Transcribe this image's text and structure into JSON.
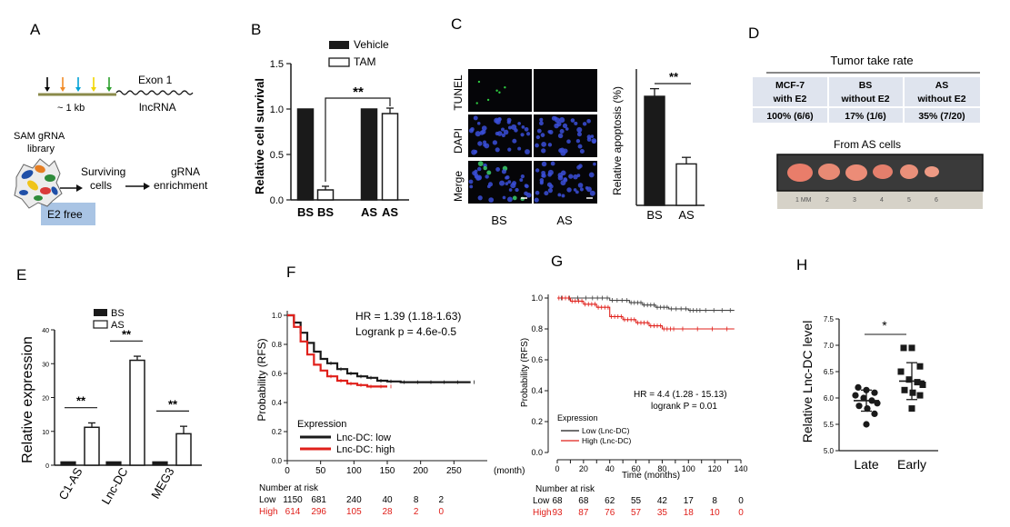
{
  "panels": {
    "A": {
      "letter": "A",
      "exon_label": "Exon 1",
      "scale_label": "~ 1 kb",
      "lnc_label": "lncRNA",
      "library_label_1": "SAM gRNA",
      "library_label_2": "library",
      "surviving_1": "Surviving",
      "surviving_2": "cells",
      "enrich_1": "gRNA",
      "enrich_2": "enrichment",
      "box_label": "E2 free",
      "arrow_colors": [
        "#000000",
        "#f28c28",
        "#00a2d6",
        "#f2d600",
        "#2ca02c"
      ]
    },
    "B": {
      "letter": "B",
      "sig": "**"
    },
    "C": {
      "letter": "C",
      "row_labels": [
        "TUNEL",
        "DAPI",
        "Merge"
      ],
      "col_labels": [
        "BS",
        "AS"
      ],
      "sig": "**"
    },
    "D": {
      "letter": "D",
      "table_title": "Tumor take rate",
      "headers": [
        [
          "MCF-7",
          "with E2"
        ],
        [
          "BS",
          "without E2"
        ],
        [
          "AS",
          "without E2"
        ]
      ],
      "values": [
        "100% (6/6)",
        "17% (1/6)",
        "35% (7/20)"
      ],
      "photo_title": "From AS cells",
      "ruler": [
        "1 MM",
        "2",
        "3",
        "4",
        "5",
        "6"
      ]
    },
    "E": {
      "letter": "E",
      "sig": [
        "**",
        "**",
        "**"
      ]
    },
    "F": {
      "letter": "F",
      "hr": "HR = 1.39 (1.18-1.63)",
      "logrank": "Logrank p = 4.6e-0.5",
      "legend_title": "Expression",
      "legend": [
        "Lnc-DC: low",
        "Lnc-DC: high"
      ],
      "risk_title": "Number at risk",
      "risk_low_label": "Low",
      "risk_low": [
        "1150",
        "681",
        "240",
        "40",
        "8",
        "2"
      ],
      "risk_high_label": "High",
      "risk_high": [
        "614",
        "296",
        "105",
        "28",
        "2",
        "0"
      ]
    },
    "G": {
      "letter": "G",
      "hr": "HR = 4.4 (1.28 - 15.13)",
      "logrank": "logrank P = 0.01",
      "legend_title": "Expression",
      "legend": [
        "Low  (Lnc-DC)",
        "High (Lnc-DC)"
      ],
      "risk_title": "Number at risk",
      "risk_low_label": "Low",
      "risk_low": [
        "68",
        "68",
        "62",
        "55",
        "42",
        "17",
        "8",
        "0"
      ],
      "risk_high_label": "High",
      "risk_high": [
        "93",
        "87",
        "76",
        "57",
        "35",
        "18",
        "10",
        "0"
      ]
    },
    "H": {
      "letter": "H",
      "sig": "*"
    }
  },
  "colors": {
    "black": "#1a1a1a",
    "red": "#e0201b",
    "table_fill": "#dfe4ee",
    "box_fill": "#a9c4e4"
  },
  "chart_data": [
    {
      "panel": "B",
      "type": "bar",
      "categories": [
        "BS",
        "BS",
        "AS",
        "AS"
      ],
      "series": [
        {
          "name": "Vehicle",
          "values": [
            1.0,
            null,
            1.0,
            null
          ]
        },
        {
          "name": "TAM",
          "values": [
            null,
            0.11,
            null,
            0.95
          ]
        }
      ],
      "errors": [
        0,
        0.04,
        0,
        0.06
      ],
      "ylabel": "Relative cell survival",
      "ylim": [
        0,
        1.5
      ],
      "yticks": [
        0,
        0.5,
        1.0,
        1.5
      ],
      "ytick_labels": [
        "0.0",
        "0.5",
        "1.0",
        "1.5"
      ],
      "legend": "top-right"
    },
    {
      "panel": "C",
      "type": "bar",
      "categories": [
        "BS",
        "AS"
      ],
      "values": [
        20,
        7.6
      ],
      "errors": [
        1.4,
        1.2
      ],
      "ylabel": "Relative apoptosis (%)",
      "ylim": [
        0,
        25
      ]
    },
    {
      "panel": "E",
      "type": "bar",
      "categories": [
        "C1-AS",
        "Lnc-DC",
        "MEG3"
      ],
      "series": [
        {
          "name": "BS",
          "values": [
            1.0,
            1.0,
            1.0
          ]
        },
        {
          "name": "AS",
          "values": [
            11.2,
            31.0,
            9.3
          ]
        }
      ],
      "errors": [
        [
          0,
          0,
          0
        ],
        [
          1.3,
          1.2,
          2.2
        ]
      ],
      "ylabel": "Relative expression",
      "ylim": [
        0,
        40
      ],
      "yticks": [
        0,
        10,
        20,
        30,
        40
      ],
      "ytick_labels": [
        "0",
        "10",
        "20",
        "30",
        "40"
      ],
      "legend": "top-center"
    },
    {
      "panel": "F",
      "type": "line",
      "xlabel": "(month)",
      "ylabel": "Probability (RFS)",
      "xlim": [
        0,
        300
      ],
      "ylim": [
        0,
        1.0
      ],
      "xticks": [
        0,
        50,
        100,
        150,
        200,
        250
      ],
      "yticks": [
        0,
        0.2,
        0.4,
        0.6,
        0.8,
        1.0
      ],
      "ytick_labels": [
        "0.0",
        "0.2",
        "0.4",
        "0.6",
        "0.8",
        "1.0"
      ],
      "series": [
        {
          "name": "Lnc-DC: low",
          "x": [
            0,
            10,
            20,
            30,
            40,
            50,
            60,
            75,
            90,
            105,
            120,
            135,
            150,
            170,
            190,
            210,
            230,
            250,
            275
          ],
          "y": [
            1.0,
            0.95,
            0.88,
            0.81,
            0.75,
            0.7,
            0.67,
            0.63,
            0.6,
            0.58,
            0.57,
            0.55,
            0.545,
            0.54,
            0.54,
            0.54,
            0.54,
            0.54,
            0.54
          ]
        },
        {
          "name": "Lnc-DC: high",
          "x": [
            0,
            10,
            20,
            30,
            40,
            50,
            60,
            75,
            90,
            105,
            120,
            135,
            150
          ],
          "y": [
            1.0,
            0.92,
            0.82,
            0.73,
            0.66,
            0.62,
            0.58,
            0.55,
            0.53,
            0.52,
            0.51,
            0.51,
            0.51
          ]
        }
      ]
    },
    {
      "panel": "G",
      "type": "line",
      "xlabel": "Time (months)",
      "ylabel": "Probability (RFS)",
      "xlim": [
        0,
        140
      ],
      "ylim": [
        0,
        1.0
      ],
      "xticks": [
        0,
        10,
        20,
        30,
        40,
        50,
        60,
        70,
        80,
        90,
        100,
        110,
        120,
        130,
        140
      ],
      "yticks": [
        0,
        0.2,
        0.4,
        0.6,
        0.8,
        1.0
      ],
      "ytick_labels": [
        "0.0",
        "0.2",
        "0.4",
        "0.6",
        "0.8",
        "1.0"
      ],
      "series": [
        {
          "name": "Low  (Lnc-DC)",
          "x": [
            0,
            25,
            40,
            55,
            65,
            75,
            85,
            100,
            110,
            135
          ],
          "y": [
            1.0,
            1.0,
            0.985,
            0.97,
            0.955,
            0.94,
            0.93,
            0.92,
            0.92,
            0.92
          ]
        },
        {
          "name": "High (Lnc-DC)",
          "x": [
            0,
            10,
            20,
            30,
            40,
            50,
            60,
            70,
            80,
            90,
            135
          ],
          "y": [
            1.0,
            0.98,
            0.96,
            0.94,
            0.88,
            0.86,
            0.84,
            0.82,
            0.8,
            0.8,
            0.8
          ]
        }
      ]
    },
    {
      "panel": "H",
      "type": "scatter",
      "categories": [
        "Late",
        "Early"
      ],
      "series": [
        {
          "name": "Late",
          "values": [
            6.2,
            6.15,
            6.1,
            6.05,
            6.0,
            5.95,
            5.9,
            5.85,
            5.8,
            5.7,
            5.5
          ]
        },
        {
          "name": "Early",
          "values": [
            6.95,
            6.95,
            6.6,
            6.5,
            6.35,
            6.3,
            6.25,
            6.15,
            6.1,
            6.05,
            5.8
          ]
        }
      ],
      "means": [
        5.95,
        6.32
      ],
      "sd": [
        0.2,
        0.35
      ],
      "ylabel": "Relative Lnc-DC level",
      "ylim": [
        5.0,
        7.5
      ],
      "yticks": [
        5.0,
        5.5,
        6.0,
        6.5,
        7.0,
        7.5
      ],
      "ytick_labels": [
        "5.0",
        "5.5",
        "6.0",
        "6.5",
        "7.0",
        "7.5"
      ]
    }
  ]
}
